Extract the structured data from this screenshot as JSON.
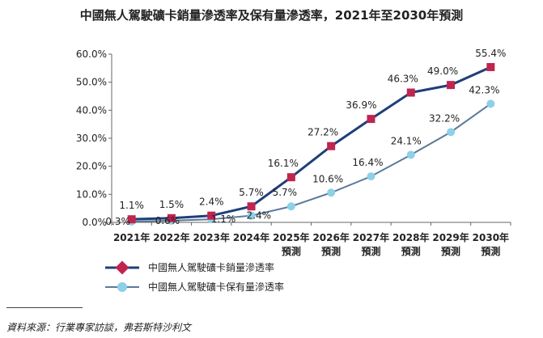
{
  "chart_data": {
    "type": "line",
    "title": "中國無人駕駛礦卡銷量滲透率及保有量滲透率，2021年至2030年預測",
    "categories": [
      "2021年",
      "2022年",
      "2023年",
      "2024年",
      "2025年\n預測",
      "2026年\n預測",
      "2027年\n預測",
      "2028年\n預測",
      "2029年\n預測",
      "2030年\n預測"
    ],
    "yticks": [
      "0.0%",
      "10.0%",
      "20.0%",
      "30.0%",
      "40.0%",
      "50.0%",
      "60.0%"
    ],
    "ylim": [
      0,
      60
    ],
    "xlabel": "",
    "ylabel": "",
    "series": [
      {
        "name": "中國無人駕駛礦卡銷量滲透率",
        "color": "#1f3f7a",
        "marker_color": "#c0254f",
        "marker": "square",
        "values": [
          1.1,
          1.5,
          2.4,
          5.7,
          16.1,
          27.2,
          36.9,
          46.3,
          49.0,
          55.4
        ],
        "labels": [
          "1.1%",
          "1.5%",
          "2.4%",
          "5.7%",
          "16.1%",
          "27.2%",
          "36.9%",
          "46.3%",
          "49.0%",
          "55.4%"
        ]
      },
      {
        "name": "中國無人駕駛礦卡保有量滲透率",
        "color": "#5b7a99",
        "marker_color": "#8dd0e8",
        "marker": "circle",
        "values": [
          0.3,
          0.6,
          1.1,
          2.4,
          5.7,
          10.6,
          16.4,
          24.1,
          32.2,
          42.3
        ],
        "labels": [
          "0.3%",
          "0.6%",
          "1.1%",
          "2.4%",
          "5.7%",
          "10.6%",
          "16.4%",
          "24.1%",
          "32.2%",
          "42.3%"
        ]
      }
    ]
  },
  "source": "資料來源：行業專家訪談，弗若斯特沙利文"
}
